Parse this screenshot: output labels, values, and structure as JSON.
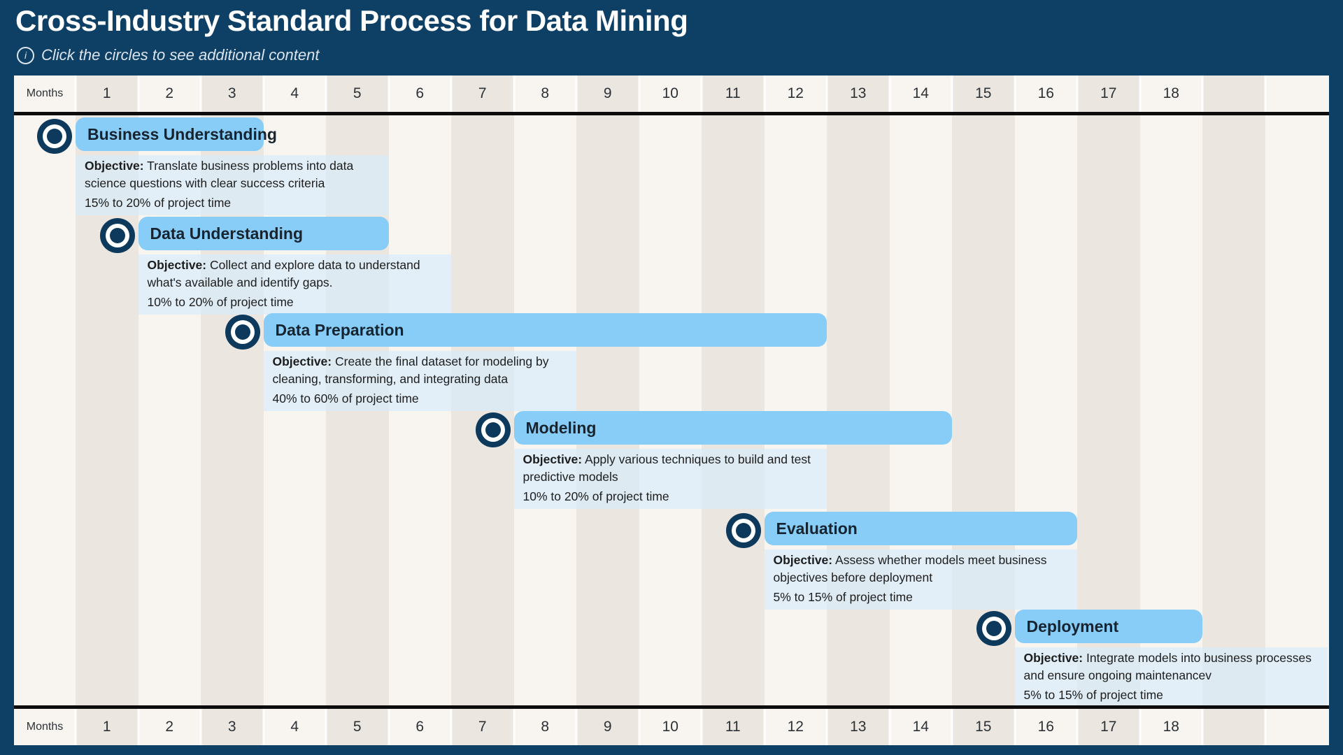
{
  "header": {
    "title": "Cross-Industry Standard Process for Data Mining",
    "subtitle": "Click the circles to see additional content",
    "info_icon": "i"
  },
  "axis": {
    "label": "Months",
    "months": [
      "1",
      "2",
      "3",
      "4",
      "5",
      "6",
      "7",
      "8",
      "9",
      "10",
      "11",
      "12",
      "13",
      "14",
      "15",
      "16",
      "17",
      "18"
    ],
    "total_columns": 20
  },
  "colors": {
    "page_background": "#0e4066",
    "bar_fill": "#87cdf7",
    "panel_fill": "rgba(213,235,252,0.62)",
    "stripe_dark": "#ebe6e0",
    "stripe_light": "#f8f5f1",
    "circle_navy": "#0d3a5c",
    "divider_black": "#0d0d0d",
    "title_text": "#ffffff"
  },
  "chart_data": {
    "type": "bar",
    "variant": "gantt-timeline",
    "title": "Cross-Industry Standard Process for Data Mining",
    "xlabel": "Months",
    "x_range": [
      1,
      18
    ],
    "grid": "alternating column stripes",
    "legend": "none",
    "objective_label": "Objective",
    "categories": [
      "Business Understanding",
      "Data Understanding",
      "Data Preparation",
      "Modeling",
      "Evaluation",
      "Deployment"
    ],
    "series": [
      {
        "name": "start_month",
        "values": [
          1,
          2,
          4,
          8,
          12,
          16
        ]
      },
      {
        "name": "end_month",
        "values": [
          3,
          5,
          12,
          14,
          16,
          18
        ]
      }
    ],
    "phases": [
      {
        "name": "Business Understanding",
        "start_month": 1,
        "end_month": 3,
        "objective": "Translate business problems into data science questions with clear success criteria",
        "time_allocation": "15% to 20% of project time"
      },
      {
        "name": "Data Understanding",
        "start_month": 2,
        "end_month": 5,
        "objective": "Collect and explore data to understand what's available and identify gaps.",
        "time_allocation": "10% to 20% of project time"
      },
      {
        "name": "Data Preparation",
        "start_month": 4,
        "end_month": 12,
        "objective": "Create the final dataset for modeling by cleaning, transforming, and integrating data",
        "time_allocation": "40% to 60% of project time"
      },
      {
        "name": "Modeling",
        "start_month": 8,
        "end_month": 14,
        "objective": "Apply various techniques to build and test predictive models",
        "time_allocation": "10% to 20% of project time"
      },
      {
        "name": "Evaluation",
        "start_month": 12,
        "end_month": 16,
        "objective": "Assess whether models meet business objectives before deployment",
        "time_allocation": "5% to 15% of project time"
      },
      {
        "name": "Deployment",
        "start_month": 16,
        "end_month": 18,
        "objective": "Integrate models into business processes and ensure ongoing maintenancev",
        "time_allocation": "5% to 15% of project time"
      }
    ]
  }
}
